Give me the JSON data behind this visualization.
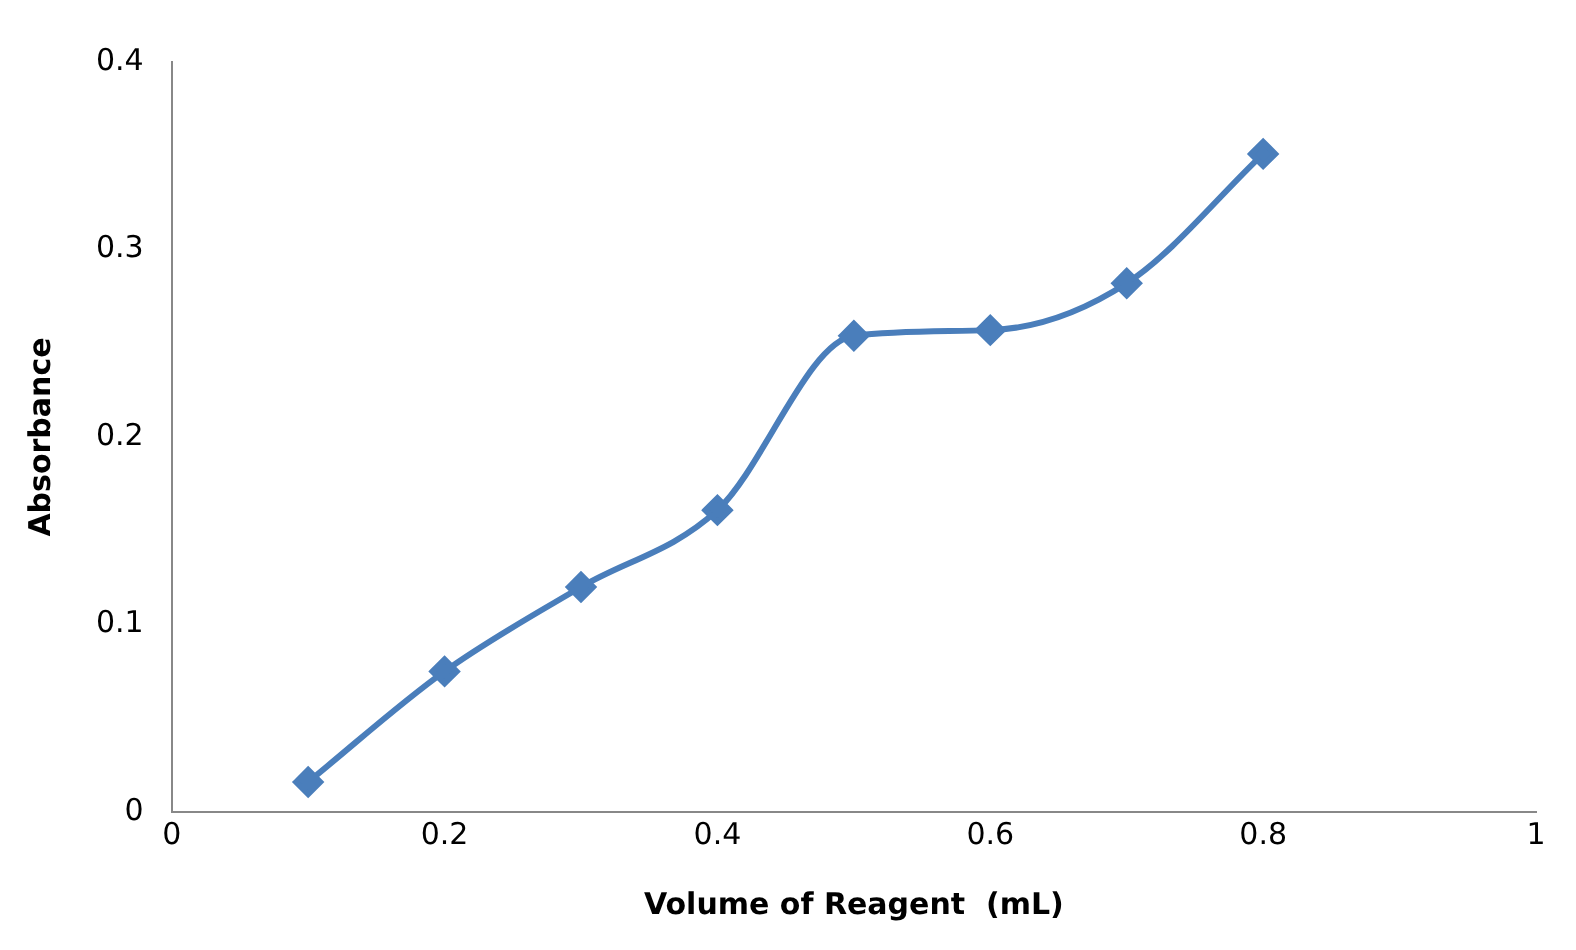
{
  "chart_data": {
    "type": "line",
    "xlabel": "Volume of Reagent  (mL)",
    "ylabel": "Absorbance",
    "x": [
      0.1,
      0.2,
      0.3,
      0.4,
      0.5,
      0.6,
      0.7,
      0.8
    ],
    "series": [
      {
        "color": "#4a7ebb",
        "values": [
          0.016,
          0.075,
          0.12,
          0.161,
          0.254,
          0.257,
          0.282,
          0.351
        ]
      }
    ],
    "xlim": [
      0,
      1
    ],
    "xticks": [
      0,
      0.2,
      0.4,
      0.6,
      0.8,
      1
    ],
    "ylim": [
      0,
      0.4
    ],
    "yticks": [
      0,
      0.1,
      0.2,
      0.3,
      0.4
    ],
    "grid": false,
    "legend": false,
    "marker": "diamond",
    "line_style": "solid"
  }
}
